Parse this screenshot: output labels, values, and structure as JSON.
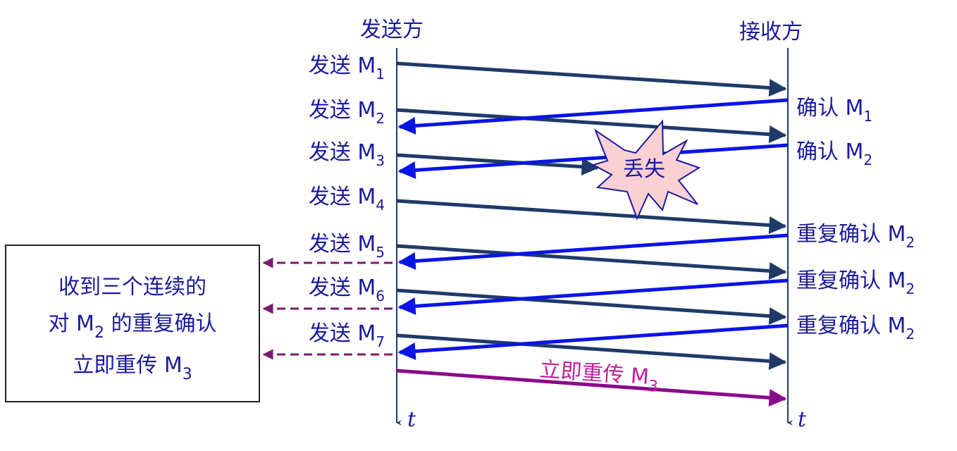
{
  "title": "",
  "sender": {
    "title": "发送方",
    "time_label": "t",
    "messages": [
      {
        "prefix": "发送 M",
        "sub": "1"
      },
      {
        "prefix": "发送 M",
        "sub": "2"
      },
      {
        "prefix": "发送 M",
        "sub": "3"
      },
      {
        "prefix": "发送 M",
        "sub": "4"
      },
      {
        "prefix": "发送 M",
        "sub": "5"
      },
      {
        "prefix": "发送 M",
        "sub": "6"
      },
      {
        "prefix": "发送 M",
        "sub": "7"
      }
    ]
  },
  "receiver": {
    "title": "接收方",
    "time_label": "t",
    "acks": [
      {
        "prefix": "确认 M",
        "sub": "1"
      },
      {
        "prefix": "确认 M",
        "sub": "2"
      },
      {
        "prefix": "重复确认 M",
        "sub": "2"
      },
      {
        "prefix": "重复确认 M",
        "sub": "2"
      },
      {
        "prefix": "重复确认 M",
        "sub": "2"
      }
    ]
  },
  "lost": {
    "label": "丢失"
  },
  "retransmit": {
    "prefix": "立即重传 M",
    "sub": "3"
  },
  "note": {
    "line1": "收到三个连续的",
    "line2_a": "对 M",
    "line2_sub": "2",
    "line2_b": " 的重复确认",
    "line3_prefix": "立即重传 M",
    "line3_sub": "3"
  },
  "colors": {
    "send_arrow": "#1f3a68",
    "ack_arrow": "#0a14e6",
    "retransmit_arrow": "#8b0a8b",
    "retransmit_text": "#c0209c",
    "dashed_arrow": "#7a1a72",
    "label_text": "#1a1a9c",
    "burst_fill": "#fbd0d4"
  }
}
